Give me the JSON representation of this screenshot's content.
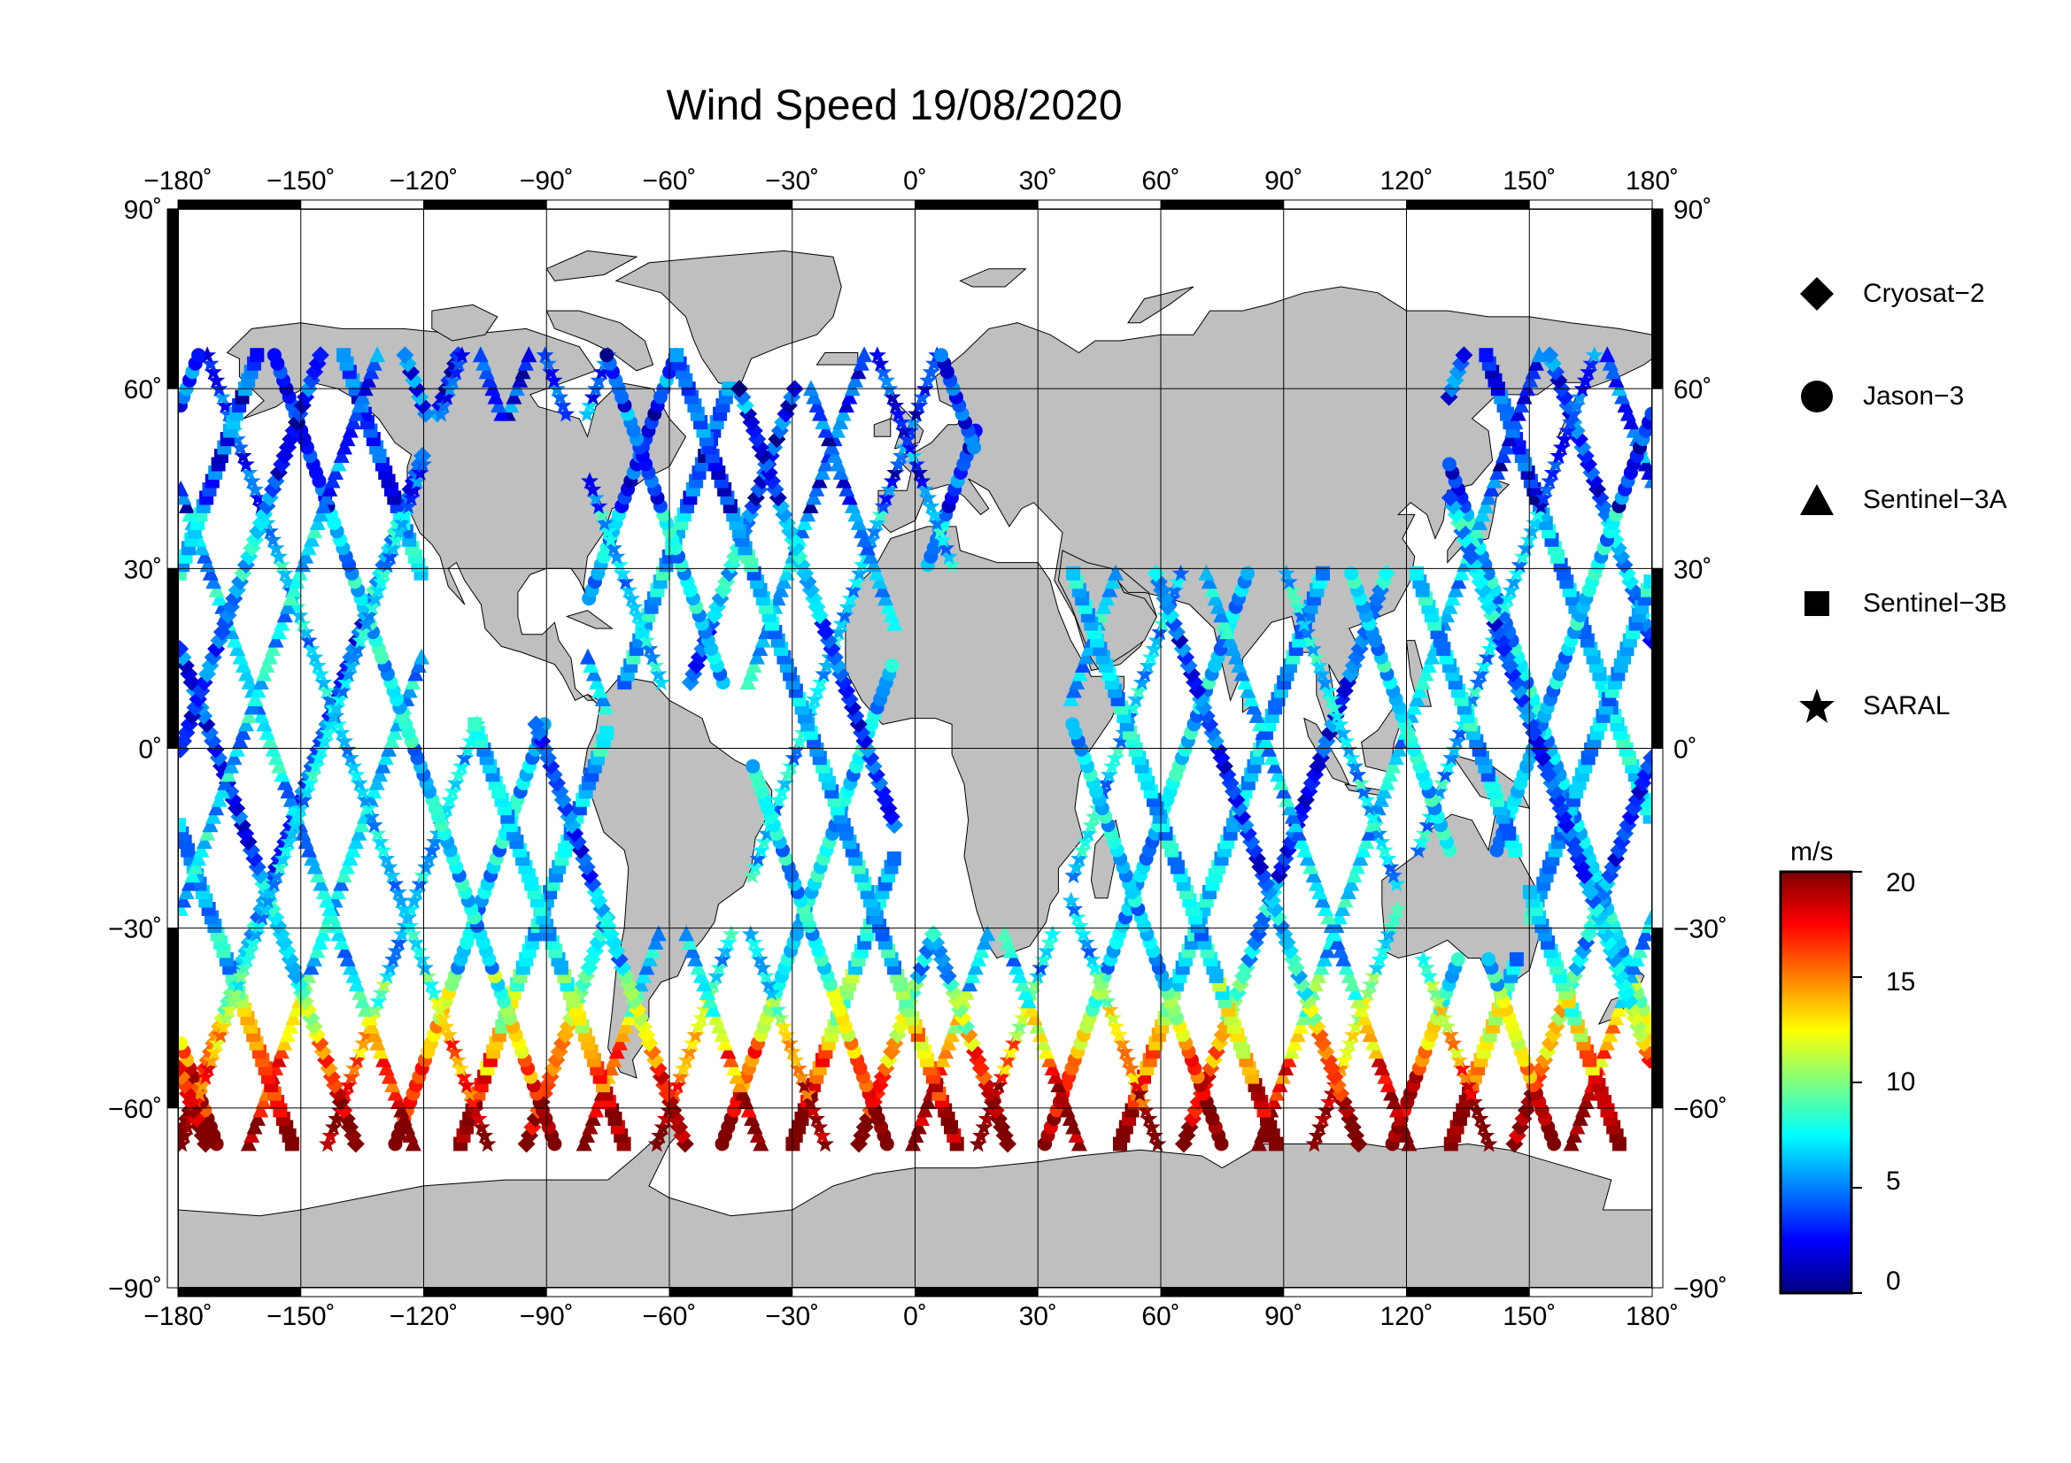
{
  "title": "Wind Speed 19/08/2020",
  "axis_ticks": {
    "lon": [
      "−180˚",
      "−150˚",
      "−120˚",
      "−90˚",
      "−60˚",
      "−30˚",
      "0˚",
      "30˚",
      "60˚",
      "90˚",
      "120˚",
      "150˚",
      "180˚"
    ],
    "lat": [
      "90˚",
      "60˚",
      "30˚",
      "0˚",
      "−30˚",
      "−60˚",
      "−90˚"
    ]
  },
  "legend": [
    {
      "label": "Cryosat−2",
      "symbol": "diamond"
    },
    {
      "label": "Jason−3",
      "symbol": "circle"
    },
    {
      "label": "Sentinel−3A",
      "symbol": "triangle"
    },
    {
      "label": "Sentinel−3B",
      "symbol": "square"
    },
    {
      "label": "SARAL",
      "symbol": "star"
    }
  ],
  "colorbar": {
    "unit": "m/s",
    "ticks": [
      "20",
      "15",
      "10",
      "5",
      "0"
    ],
    "range": [
      0,
      20
    ],
    "colormap": "jet"
  },
  "colors": {
    "land": "#bfbfbf",
    "ocean": "#ffffff",
    "frame": "#000000"
  }
}
